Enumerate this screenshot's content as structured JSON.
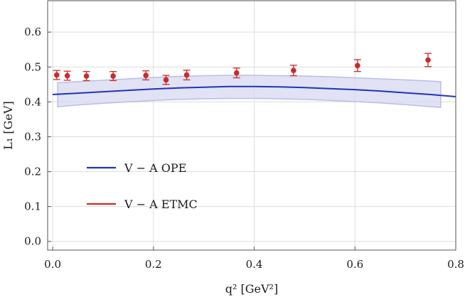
{
  "chart_data": {
    "type": "scatter",
    "xlabel": "q² [GeV²]",
    "ylabel": "L₁ [GeV]",
    "xlim": [
      -0.01,
      0.8
    ],
    "ylim": [
      -0.025,
      0.69
    ],
    "x_ticks": [
      0.0,
      0.2,
      0.4,
      0.6,
      0.8
    ],
    "x_tick_labels": [
      "0.0",
      "0.2",
      "0.4",
      "0.6",
      "0.8"
    ],
    "y_ticks": [
      0.0,
      0.1,
      0.2,
      0.3,
      0.4,
      0.5,
      0.6
    ],
    "y_tick_labels": [
      "0.0",
      "0.1",
      "0.2",
      "0.3",
      "0.4",
      "0.5",
      "0.6"
    ],
    "grid": true,
    "legend_position": "lower-left",
    "series": [
      {
        "name": "V − A OPE",
        "kind": "line-with-band",
        "color": "#2233bb",
        "band_color": "#d7d9f2",
        "x": [
          0.0,
          0.05,
          0.1,
          0.15,
          0.2,
          0.25,
          0.3,
          0.35,
          0.4,
          0.45,
          0.5,
          0.55,
          0.6,
          0.65,
          0.7,
          0.75,
          0.8
        ],
        "y": [
          0.421,
          0.425,
          0.429,
          0.433,
          0.437,
          0.44,
          0.442,
          0.444,
          0.444,
          0.443,
          0.441,
          0.438,
          0.435,
          0.431,
          0.426,
          0.421,
          0.415
        ],
        "band_x": [
          0.01,
          0.05,
          0.1,
          0.15,
          0.2,
          0.25,
          0.3,
          0.35,
          0.4,
          0.45,
          0.5,
          0.55,
          0.6,
          0.65,
          0.7,
          0.77
        ],
        "band_upper": [
          0.455,
          0.458,
          0.462,
          0.466,
          0.47,
          0.473,
          0.475,
          0.476,
          0.476,
          0.475,
          0.474,
          0.472,
          0.469,
          0.466,
          0.463,
          0.458
        ],
        "band_lower": [
          0.386,
          0.391,
          0.396,
          0.4,
          0.404,
          0.407,
          0.409,
          0.41,
          0.41,
          0.409,
          0.407,
          0.404,
          0.401,
          0.397,
          0.392,
          0.384
        ]
      },
      {
        "name": "V − A ETMC",
        "kind": "errorbar-points",
        "color": "#cc2a2a",
        "x": [
          0.008,
          0.029,
          0.067,
          0.12,
          0.185,
          0.225,
          0.266,
          0.365,
          0.478,
          0.605,
          0.745
        ],
        "y": [
          0.477,
          0.475,
          0.474,
          0.474,
          0.476,
          0.463,
          0.477,
          0.483,
          0.49,
          0.504,
          0.52
        ],
        "yerr": [
          0.013,
          0.013,
          0.013,
          0.013,
          0.013,
          0.013,
          0.014,
          0.014,
          0.015,
          0.017,
          0.019
        ]
      }
    ]
  }
}
